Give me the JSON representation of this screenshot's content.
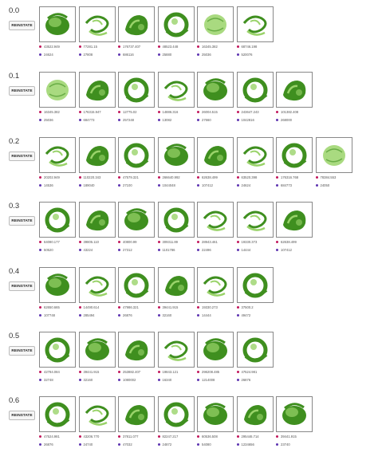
{
  "reinstate_label": "REINSTATE",
  "colors": {
    "dot_a": "#c2185b",
    "dot_b": "#5e35b1",
    "shape_dark": "#3f8f1f",
    "shape_light": "#9ad36a"
  },
  "rows": [
    {
      "label": "0.0",
      "items": [
        {
          "v1": "43522.949",
          "v2": "24624",
          "shape": 0
        },
        {
          "v1": "77281.15",
          "v2": "27808",
          "shape": 2
        },
        {
          "v1": "176737.407",
          "v2": "686116",
          "shape": 1
        },
        {
          "v1": "48523.448",
          "v2": "25880",
          "shape": 3
        },
        {
          "v1": "16345.382",
          "v2": "25036",
          "shape": 4
        },
        {
          "v1": "68746.198",
          "v2": "520076",
          "shape": 2
        }
      ]
    },
    {
      "label": "0.1",
      "items": [
        {
          "v1": "16345.382",
          "v2": "25036",
          "shape": 4
        },
        {
          "v1": "176315.947",
          "v2": "684773",
          "shape": 1
        },
        {
          "v1": "12775.02",
          "v2": "257248",
          "shape": 3
        },
        {
          "v1": "14886.316",
          "v2": "13082",
          "shape": 2
        },
        {
          "v1": "26004.515",
          "v2": "27660",
          "shape": 0
        },
        {
          "v1": "243647.243",
          "v2": "1042816",
          "shape": 3
        },
        {
          "v1": "101382.408",
          "v2": "268000",
          "shape": 1
        }
      ]
    },
    {
      "label": "0.2",
      "items": [
        {
          "v1": "20202.949",
          "v2": "14536",
          "shape": 2
        },
        {
          "v1": "110220.343",
          "v2": "189040",
          "shape": 1
        },
        {
          "v1": "47579.321",
          "v2": "27100",
          "shape": 3
        },
        {
          "v1": "266640.992",
          "v2": "1044048",
          "shape": 0
        },
        {
          "v1": "62638.499",
          "v2": "107412",
          "shape": 1
        },
        {
          "v1": "63520.398",
          "v2": "24624",
          "shape": 2
        },
        {
          "v1": "176316.768",
          "v2": "684773",
          "shape": 3
        },
        {
          "v1": "78384.553",
          "v2": "24050",
          "shape": 4
        }
      ]
    },
    {
      "label": "0.3",
      "items": [
        {
          "v1": "64080.177",
          "v2": "50520",
          "shape": 3
        },
        {
          "v1": "39805.110",
          "v2": "43224",
          "shape": 1
        },
        {
          "v1": "40800.99",
          "v2": "27312",
          "shape": 0
        },
        {
          "v1": "309311.89",
          "v2": "1101786",
          "shape": 3
        },
        {
          "v1": "28943.461",
          "v2": "22496",
          "shape": 2
        },
        {
          "v1": "19330.373",
          "v2": "14444",
          "shape": 2
        },
        {
          "v1": "62638.499",
          "v2": "107412",
          "shape": 1
        }
      ]
    },
    {
      "label": "0.4",
      "items": [
        {
          "v1": "62650.665",
          "v2": "107748",
          "shape": 0
        },
        {
          "v1": "14490.614",
          "v2": "285494",
          "shape": 2
        },
        {
          "v1": "47986.321",
          "v2": "26876",
          "shape": 3
        },
        {
          "v1": "39441.915",
          "v2": "32160",
          "shape": 1
        },
        {
          "v1": "19330.273",
          "v2": "14444",
          "shape": 2
        },
        {
          "v1": "37500.2",
          "v2": "49472",
          "shape": 3
        }
      ]
    },
    {
      "label": "0.5",
      "items": [
        {
          "v1": "42784.084",
          "v2": "32748",
          "shape": 3
        },
        {
          "v1": "39441.915",
          "v2": "32160",
          "shape": 0
        },
        {
          "v1": "253882.407",
          "v2": "1080002",
          "shape": 1
        },
        {
          "v1": "19843.121",
          "v2": "16340",
          "shape": 2
        },
        {
          "v1": "296208.485",
          "v2": "1214008",
          "shape": 0
        },
        {
          "v1": "47524.981",
          "v2": "26876",
          "shape": 3
        }
      ]
    },
    {
      "label": "0.6",
      "items": [
        {
          "v1": "47524.981",
          "v2": "26876",
          "shape": 3
        },
        {
          "v1": "43206.770",
          "v2": "24740",
          "shape": 2
        },
        {
          "v1": "37811.077",
          "v2": "47032",
          "shape": 1
        },
        {
          "v1": "82247.217",
          "v2": "24872",
          "shape": 3
        },
        {
          "v1": "60536.508",
          "v2": "54080",
          "shape": 0
        },
        {
          "v1": "295446.714",
          "v2": "1234656",
          "shape": 1
        },
        {
          "v1": "39441.915",
          "v2": "23740",
          "shape": 0
        }
      ]
    }
  ]
}
